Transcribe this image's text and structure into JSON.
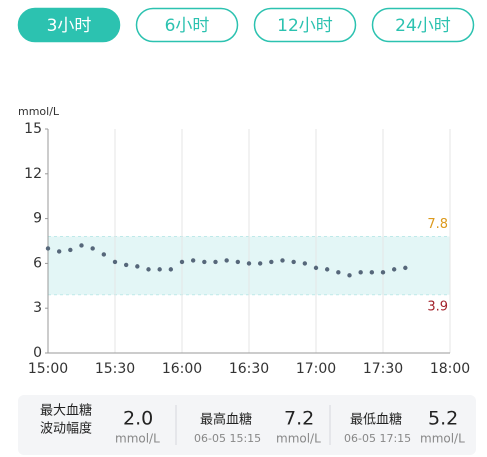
{
  "tabs": [
    "3小时",
    "6小时",
    "12小时",
    "24小时"
  ],
  "chart_data": {
    "type": "scatter",
    "y_label": "mmol/L",
    "x": [
      "15:00",
      "15:05",
      "15:10",
      "15:15",
      "15:20",
      "15:25",
      "15:30",
      "15:35",
      "15:40",
      "15:45",
      "15:50",
      "15:55",
      "16:00",
      "16:05",
      "16:10",
      "16:15",
      "16:20",
      "16:25",
      "16:30",
      "16:35",
      "16:40",
      "16:45",
      "16:50",
      "16:55",
      "17:00",
      "17:05",
      "17:10",
      "17:15",
      "17:20",
      "17:25",
      "17:30",
      "17:35",
      "17:40"
    ],
    "values": [
      7.0,
      6.8,
      6.9,
      7.2,
      7.0,
      6.6,
      6.1,
      5.9,
      5.8,
      5.6,
      5.6,
      5.6,
      6.1,
      6.2,
      6.1,
      6.1,
      6.2,
      6.1,
      6.0,
      6.0,
      6.1,
      6.2,
      6.1,
      6.0,
      5.7,
      5.6,
      5.4,
      5.2,
      5.4,
      5.4,
      5.4,
      5.6,
      5.7
    ],
    "color": "#56677a",
    "xlim": [
      "15:00",
      "18:00"
    ],
    "xticks": [
      "15:00",
      "15:30",
      "16:00",
      "16:30",
      "17:00",
      "17:30",
      "18:00"
    ],
    "ylim": [
      0,
      15
    ],
    "yticks": [
      0,
      3,
      6,
      9,
      12,
      15
    ],
    "target_range": [
      3.9,
      7.8
    ],
    "target_colors": [
      "#a3232c",
      "#dc9a1e"
    ],
    "grid": true
  },
  "stats": [
    {
      "label": [
        "最大血糖",
        "波动幅度"
      ],
      "value": "2.0",
      "unit": "mmol/L"
    },
    {
      "label": [
        "最高血糖"
      ],
      "value": "7.2",
      "time": "06-05 15:15",
      "unit": "mmol/L"
    },
    {
      "label": [
        "最低血糖"
      ],
      "value": "5.2",
      "time": "06-05 17:15",
      "unit": "mmol/L"
    }
  ]
}
